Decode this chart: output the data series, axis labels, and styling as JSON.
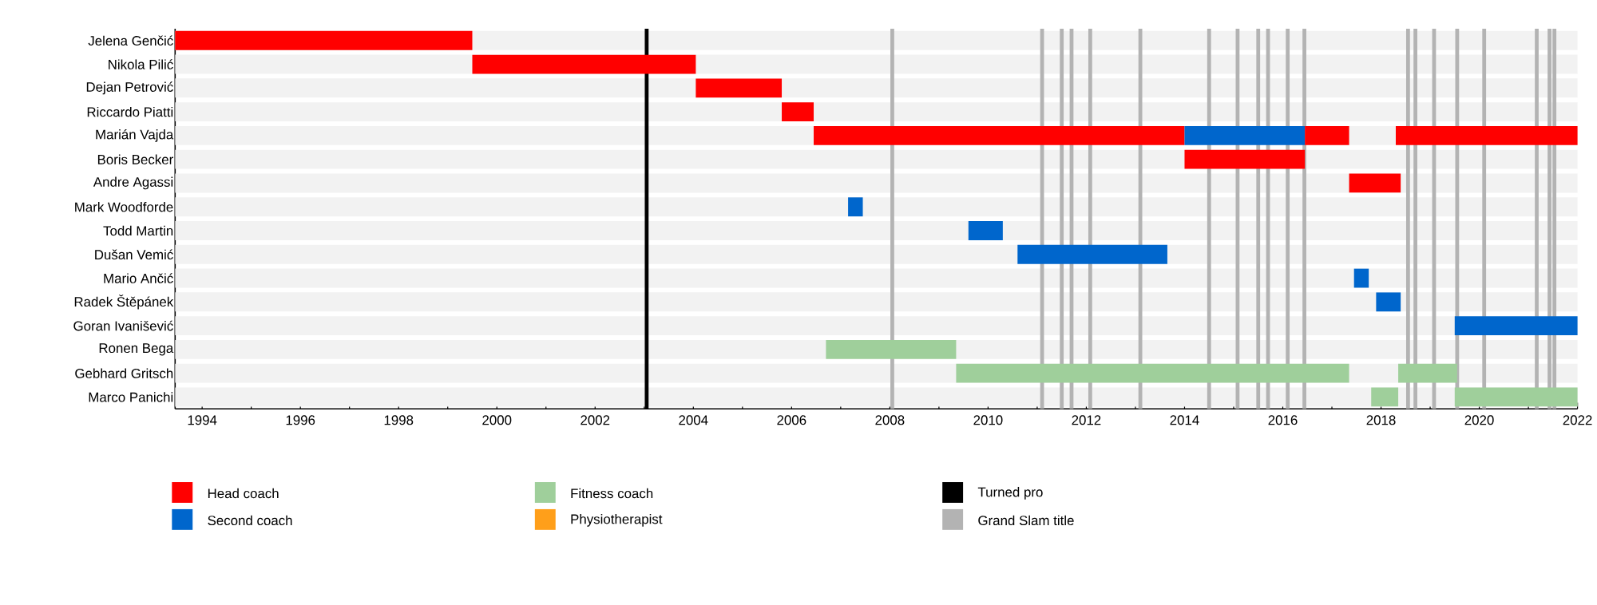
{
  "chart_data": {
    "type": "bar",
    "orientation": "horizontal",
    "categories": [
      "Jelena Genčić",
      "Nikola Pilić",
      "Dejan Petrović",
      "Riccardo Piatti",
      "Marián Vajda",
      "Boris Becker",
      "Andre Agassi",
      "Mark Woodforde",
      "Todd Martin",
      "Dušan Vemić",
      "Mario Ančić",
      "Radek Štěpánek",
      "Goran Ivanišević",
      "Ronen Bega",
      "Gebhard Gritsch",
      "Marco Panichi"
    ],
    "series": [
      {
        "name": "Head coach",
        "color": "#ff0000",
        "base": [
          1993.45,
          1999.5,
          2004.05,
          2005.8,
          2006.45,
          2014.0,
          2017.35,
          null,
          null,
          null,
          null,
          null,
          null,
          null,
          null,
          null
        ],
        "values": [
          6.05,
          4.55,
          1.75,
          0.65,
          7.55,
          2.45,
          1.05,
          null,
          null,
          null,
          null,
          null,
          null,
          null,
          null,
          null
        ]
      },
      {
        "name": "Second coach",
        "color": "#0066cc",
        "base": [
          null,
          null,
          null,
          null,
          2014.0,
          null,
          null,
          2007.15,
          2009.6,
          2010.6,
          2017.45,
          2017.9,
          2019.5,
          null,
          null,
          null
        ],
        "values": [
          null,
          null,
          null,
          null,
          2.45,
          null,
          null,
          0.3,
          0.7,
          3.05,
          0.3,
          0.5,
          2.5,
          null,
          null,
          null
        ]
      },
      {
        "name": "Fitness coach",
        "color": "#9fcf9b",
        "base": [
          null,
          null,
          null,
          null,
          null,
          null,
          null,
          null,
          null,
          null,
          null,
          null,
          null,
          2006.7,
          2009.35,
          2017.8
        ],
        "values": [
          null,
          null,
          null,
          null,
          null,
          null,
          null,
          null,
          null,
          null,
          null,
          null,
          null,
          2.65,
          8.0,
          0.55
        ]
      },
      {
        "name": "Physiotherapist",
        "color": "#ff9f1a",
        "base": [
          null,
          null,
          null,
          null,
          null,
          null,
          null,
          null,
          null,
          null,
          null,
          null,
          null,
          null,
          null,
          null
        ],
        "values": [
          null,
          null,
          null,
          null,
          null,
          null,
          null,
          null,
          null,
          null,
          null,
          null,
          null,
          null,
          null,
          null
        ]
      },
      {
        "color": "#ff0000",
        "base": [
          null,
          null,
          null,
          null,
          2016.45,
          null,
          null,
          null,
          null,
          null,
          null,
          null,
          null,
          null,
          null,
          null
        ],
        "values": [
          null,
          null,
          null,
          null,
          0.9,
          null,
          null,
          null,
          null,
          null,
          null,
          null,
          null,
          null,
          null,
          null
        ]
      },
      {
        "color": "#ff0000",
        "base": [
          null,
          null,
          null,
          null,
          2018.3,
          null,
          null,
          null,
          null,
          null,
          null,
          null,
          null,
          null,
          null,
          null
        ],
        "values": [
          null,
          null,
          null,
          null,
          3.7,
          null,
          null,
          null,
          null,
          null,
          null,
          null,
          null,
          null,
          null,
          null
        ]
      },
      {
        "color": "#9fcf9b",
        "base": [
          null,
          null,
          null,
          null,
          null,
          null,
          null,
          null,
          null,
          null,
          null,
          null,
          null,
          null,
          2018.35,
          2019.5
        ],
        "values": [
          null,
          null,
          null,
          null,
          null,
          null,
          null,
          null,
          null,
          null,
          null,
          null,
          null,
          null,
          1.2,
          2.5
        ]
      }
    ],
    "xlim": [
      1993.45,
      2022
    ],
    "xticks": [
      1994,
      {
        "value": 1995,
        "label": null
      },
      1996,
      {
        "value": 1997,
        "label": null
      },
      1998,
      {
        "value": 1999,
        "label": null
      },
      2000,
      {
        "value": 2001,
        "label": null
      },
      2002,
      {
        "value": 2003,
        "label": null
      },
      2004,
      {
        "value": 2005,
        "label": null
      },
      2006,
      {
        "value": 2007,
        "label": null
      },
      2008,
      {
        "value": 2009,
        "label": null
      },
      2010,
      {
        "value": 2011,
        "label": null
      },
      2012,
      {
        "value": 2013,
        "label": null
      },
      2014,
      {
        "value": 2015,
        "label": null
      },
      2016,
      {
        "value": 2017,
        "label": null
      },
      2018,
      {
        "value": 2019,
        "label": null
      },
      2020,
      {
        "value": 2021,
        "label": null
      },
      2022
    ],
    "ref_lines": [
      {
        "axis": "x",
        "value": 2003.05,
        "color": "#000000",
        "label": "Turned pro"
      },
      {
        "axis": "x",
        "value": 2008.05,
        "color": "#b3b3b3",
        "label": "Grand Slam title"
      },
      {
        "axis": "x",
        "value": 2011.1,
        "color": "#b3b3b3"
      },
      {
        "axis": "x",
        "value": 2011.5,
        "color": "#b3b3b3"
      },
      {
        "axis": "x",
        "value": 2011.7,
        "color": "#b3b3b3"
      },
      {
        "axis": "x",
        "value": 2012.08,
        "color": "#b3b3b3"
      },
      {
        "axis": "x",
        "value": 2013.1,
        "color": "#b3b3b3"
      },
      {
        "axis": "x",
        "value": 2014.5,
        "color": "#b3b3b3"
      },
      {
        "axis": "x",
        "value": 2015.08,
        "color": "#b3b3b3"
      },
      {
        "axis": "x",
        "value": 2015.5,
        "color": "#b3b3b3"
      },
      {
        "axis": "x",
        "value": 2015.7,
        "color": "#b3b3b3"
      },
      {
        "axis": "x",
        "value": 2016.1,
        "color": "#b3b3b3"
      },
      {
        "axis": "x",
        "value": 2016.44,
        "color": "#b3b3b3"
      },
      {
        "axis": "x",
        "value": 2018.55,
        "color": "#b3b3b3"
      },
      {
        "axis": "x",
        "value": 2018.7,
        "color": "#b3b3b3"
      },
      {
        "axis": "x",
        "value": 2019.08,
        "color": "#b3b3b3"
      },
      {
        "axis": "x",
        "value": 2019.55,
        "color": "#b3b3b3"
      },
      {
        "axis": "x",
        "value": 2020.1,
        "color": "#b3b3b3"
      },
      {
        "axis": "x",
        "value": 2021.17,
        "color": "#b3b3b3"
      },
      {
        "axis": "x",
        "value": 2021.43,
        "color": "#b3b3b3"
      },
      {
        "axis": "x",
        "value": 2021.53,
        "color": "#b3b3b3"
      }
    ],
    "grid": "y",
    "legend": "bottom"
  }
}
